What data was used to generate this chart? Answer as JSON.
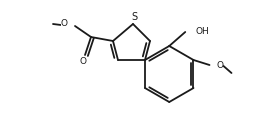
{
  "background": "#ffffff",
  "line_color": "#1a1a1a",
  "line_width": 1.3,
  "font_size": 6.5,
  "figsize": [
    2.55,
    1.17
  ],
  "dpi": 100,
  "xlim": [
    0,
    255
  ],
  "ylim": [
    0,
    117
  ]
}
